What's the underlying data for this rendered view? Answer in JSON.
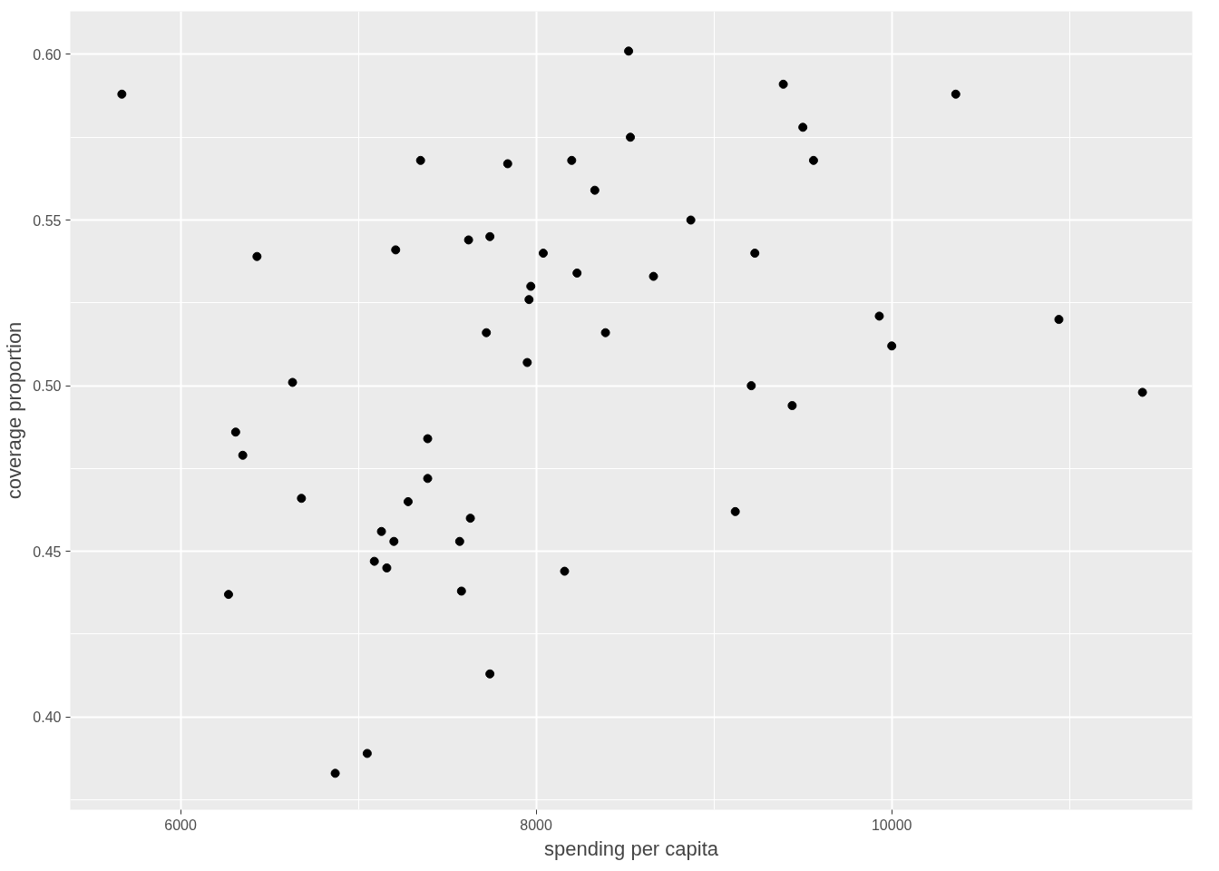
{
  "chart_data": {
    "type": "scatter",
    "xlabel": "spending per capita",
    "ylabel": "coverage proportion",
    "x": [
      5670,
      8520,
      9390,
      10360,
      9500,
      8530,
      7350,
      7840,
      8200,
      9560,
      8330,
      8870,
      6430,
      7210,
      7620,
      7740,
      8040,
      9230,
      8230,
      8660,
      7970,
      7960,
      7720,
      8390,
      9930,
      10940,
      10000,
      7950,
      6630,
      9210,
      9440,
      11410,
      6310,
      6350,
      7390,
      6680,
      7280,
      7390,
      7630,
      7130,
      7200,
      7570,
      7090,
      7160,
      8160,
      9120,
      6270,
      7580,
      7740,
      7050,
      6870
    ],
    "series": [
      {
        "color": "#000000",
        "values": [
          0.588,
          0.601,
          0.591,
          0.588,
          0.578,
          0.575,
          0.568,
          0.567,
          0.568,
          0.568,
          0.559,
          0.55,
          0.539,
          0.541,
          0.544,
          0.545,
          0.54,
          0.54,
          0.534,
          0.533,
          0.53,
          0.526,
          0.516,
          0.516,
          0.521,
          0.52,
          0.512,
          0.507,
          0.501,
          0.5,
          0.494,
          0.498,
          0.486,
          0.479,
          0.484,
          0.466,
          0.465,
          0.472,
          0.46,
          0.456,
          0.453,
          0.453,
          0.447,
          0.445,
          0.444,
          0.462,
          0.437,
          0.438,
          0.413,
          0.389,
          0.383
        ]
      }
    ],
    "xlim": [
      5380,
      11690
    ],
    "ylim": [
      0.372,
      0.613
    ],
    "xticks": [
      6000,
      {
        "value": 7000,
        "label": null
      },
      8000,
      {
        "value": 9000,
        "label": null
      },
      10000,
      {
        "value": 11000,
        "label": null
      }
    ],
    "yticks": [
      {
        "value": 0.375,
        "label": null
      },
      {
        "value": 0.4,
        "label": "0.40"
      },
      {
        "value": 0.425,
        "label": null
      },
      {
        "value": 0.45,
        "label": "0.45"
      },
      {
        "value": 0.475,
        "label": null
      },
      {
        "value": 0.5,
        "label": "0.50"
      },
      {
        "value": 0.525,
        "label": null
      },
      {
        "value": 0.55,
        "label": "0.55"
      },
      {
        "value": 0.575,
        "label": null
      },
      {
        "value": 0.6,
        "label": "0.60"
      }
    ],
    "grid": true,
    "marker": "circle"
  }
}
